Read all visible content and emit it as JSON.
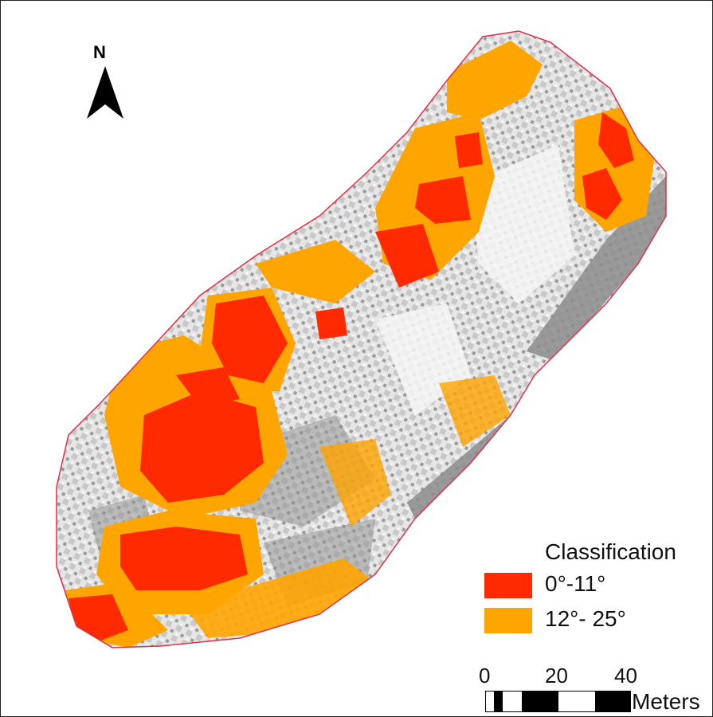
{
  "north_label": "N",
  "legend": {
    "title": "Classification",
    "items": [
      {
        "label": "0°-11°",
        "color": "#ff2a00"
      },
      {
        "label": "12°- 25°",
        "color": "#ffa500"
      }
    ]
  },
  "scale": {
    "ticks": [
      "0",
      "20",
      "40"
    ],
    "unit": "Meters"
  },
  "colors": {
    "hillshade_light": "#eeeeee",
    "hillshade_dark": "#8c8c8c",
    "boundary": "#e0304a"
  }
}
